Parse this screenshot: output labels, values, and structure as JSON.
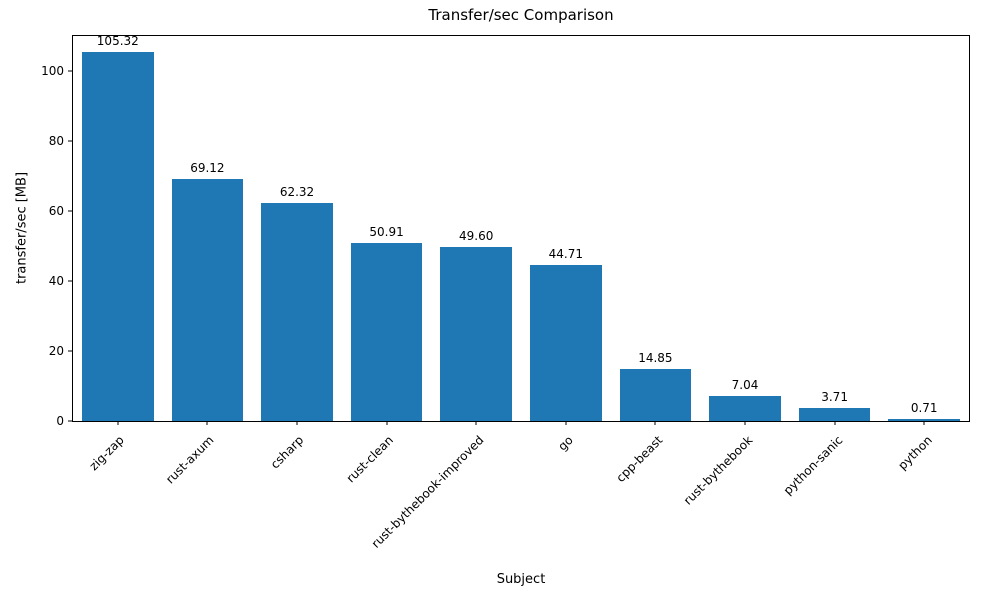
{
  "chart_data": {
    "type": "bar",
    "title": "Transfer/sec Comparison",
    "xlabel": "Subject",
    "ylabel": "transfer/sec [MB]",
    "categories": [
      "zig-zap",
      "rust-axum",
      "csharp",
      "rust-clean",
      "rust-bythebook-improved",
      "go",
      "cpp-beast",
      "rust-bythebook",
      "python-sanic",
      "python"
    ],
    "values": [
      105.32,
      69.12,
      62.32,
      50.91,
      49.6,
      44.71,
      14.85,
      7.04,
      3.71,
      0.71
    ],
    "value_labels": [
      "105.32",
      "69.12",
      "62.32",
      "50.91",
      "49.60",
      "44.71",
      "14.85",
      "7.04",
      "3.71",
      "0.71"
    ],
    "ylim": [
      0,
      110
    ],
    "yticks": [
      0,
      20,
      40,
      60,
      80,
      100
    ],
    "bar_color": "#1f77b4",
    "bar_width_fraction": 0.8,
    "grid": false,
    "legend": null,
    "background": "#ffffff",
    "text_color": "#000000"
  }
}
